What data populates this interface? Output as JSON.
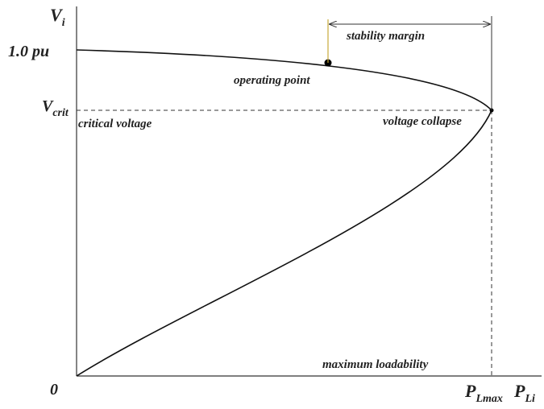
{
  "y_axis": {
    "text": "V",
    "sub": "i"
  },
  "x_axis": {
    "text": "P",
    "sub": "Li"
  },
  "origin": "0",
  "nominal_voltage": "1.0 pu",
  "critical_voltage_symbol": {
    "text": "V",
    "sub": "crit"
  },
  "max_load_symbol": {
    "text": "P",
    "sub": "Lmax"
  },
  "annotations": {
    "critical_voltage": "critical voltage",
    "operating_point": "operating point",
    "stability_margin": "stability margin",
    "voltage_collapse": "voltage collapse",
    "maximum_loadability": "maximum loadability"
  }
}
